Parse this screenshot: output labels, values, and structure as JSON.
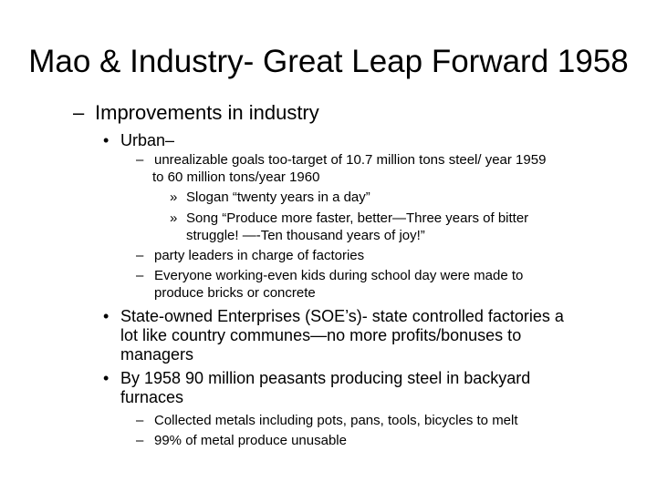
{
  "slide": {
    "title": "Mao & Industry- Great Leap Forward 1958",
    "level1": {
      "marker": "–",
      "text": "Improvements in industry"
    },
    "urban": {
      "marker": "•",
      "text": "Urban–"
    },
    "goals": {
      "marker": "–",
      "line1": "unrealizable goals too-target of 10.7 million tons steel/ year 1959",
      "line2": "to 60 million tons/year 1960"
    },
    "slogan": {
      "marker": "»",
      "text": "Slogan “twenty years in a day”"
    },
    "song": {
      "marker": "»",
      "line1": "Song “Produce more faster, better—Three years of bitter",
      "line2": "struggle! —-Ten thousand years of joy!”"
    },
    "party": {
      "marker": "–",
      "text": "party leaders in charge of factories"
    },
    "everyone": {
      "marker": "–",
      "line1": "Everyone working-even kids during school day were made to",
      "line2": "produce bricks or concrete"
    },
    "soe": {
      "marker": "•",
      "line1": "State-owned Enterprises (SOE’s)- state controlled factories a",
      "line2": "lot like country communes—no more profits/bonuses to",
      "line3": "managers"
    },
    "peasants": {
      "marker": "•",
      "line1": "By 1958 90 million peasants producing steel in backyard",
      "line2": "furnaces"
    },
    "metals": {
      "marker": "–",
      "text": "Collected metals including pots, pans, tools, bicycles to melt"
    },
    "unusable": {
      "marker": "–",
      "text": "99% of metal produce unusable"
    }
  }
}
